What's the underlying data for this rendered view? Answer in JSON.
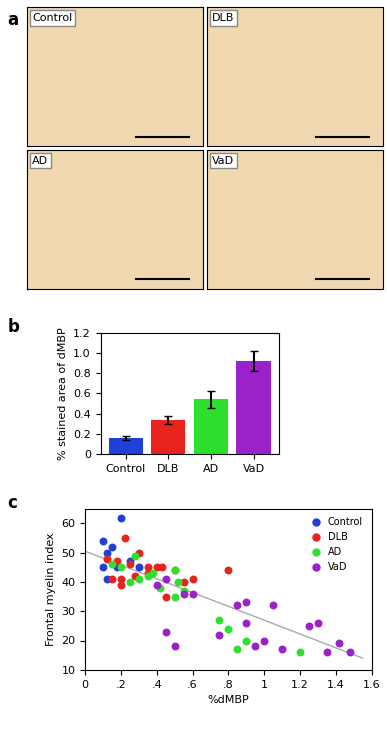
{
  "images": {
    "panel": "a",
    "labels": [
      "Control",
      "DLB",
      "AD",
      "VaD"
    ]
  },
  "chart_data": [
    {
      "type": "bar",
      "title": "b",
      "categories": [
        "Control",
        "DLB",
        "AD",
        "VaD"
      ],
      "values": [
        0.16,
        0.34,
        0.54,
        0.92
      ],
      "errors": [
        0.02,
        0.04,
        0.08,
        0.1
      ],
      "colors": [
        "#1f3fd6",
        "#e8221c",
        "#2ee02e",
        "#9a22c8"
      ],
      "y_label": "% stained area of dMBP",
      "ylim": [
        0,
        1.2
      ],
      "yticks": [
        0,
        0.2,
        0.4,
        0.6,
        0.8,
        1.0,
        1.2
      ]
    },
    {
      "type": "scatter",
      "title": "c",
      "x_label": "%dMBP",
      "y_label": "Frontal myelin index",
      "xlim": [
        0,
        1.6
      ],
      "xticks": [
        0,
        {
          "value": 0.2,
          "label": ".2"
        },
        {
          "value": 0.4,
          "label": ".4"
        },
        {
          "value": 0.6,
          "label": ".6"
        },
        {
          "value": 0.8,
          "label": ".8"
        },
        1,
        1.2,
        1.4,
        1.6
      ],
      "ylim": [
        10,
        65
      ],
      "yticks": [
        10,
        20,
        30,
        40,
        50,
        60
      ],
      "legend": "upper right",
      "series": [
        {
          "name": "Control",
          "color": "#1f3fd6",
          "x": [
            0.1,
            0.12,
            0.15,
            0.1,
            0.2,
            0.18,
            0.25,
            0.12,
            0.3
          ],
          "values": [
            54,
            50,
            52,
            45,
            62,
            45,
            47,
            41,
            45
          ]
        },
        {
          "name": "DLB",
          "color": "#e8221c",
          "x": [
            0.12,
            0.18,
            0.2,
            0.22,
            0.25,
            0.2,
            0.28,
            0.3,
            0.35,
            0.4,
            0.43,
            0.45,
            0.5,
            0.55,
            0.6,
            0.8,
            0.15,
            0.35
          ],
          "values": [
            48,
            47,
            41,
            55,
            46,
            39,
            42,
            50,
            45,
            45,
            45,
            35,
            44,
            40,
            41,
            44,
            41,
            43
          ]
        },
        {
          "name": "AD",
          "color": "#2ee02e",
          "x": [
            0.15,
            0.2,
            0.25,
            0.28,
            0.3,
            0.35,
            0.38,
            0.42,
            0.5,
            0.52,
            0.5,
            0.55,
            0.75,
            0.8,
            0.85,
            0.9,
            1.2
          ],
          "values": [
            46,
            45,
            40,
            49,
            41,
            42,
            43,
            38,
            44,
            40,
            35,
            37,
            27,
            24,
            17,
            20,
            16
          ]
        },
        {
          "name": "VaD",
          "color": "#9a22c8",
          "x": [
            0.4,
            0.45,
            0.45,
            0.5,
            0.6,
            0.75,
            0.85,
            0.9,
            0.9,
            0.95,
            1.0,
            1.05,
            1.1,
            1.25,
            1.3,
            1.35,
            1.42,
            1.48,
            0.55
          ],
          "values": [
            39,
            41,
            23,
            18,
            36,
            22,
            32,
            33,
            26,
            18,
            20,
            32,
            17,
            25,
            26,
            16,
            19,
            16,
            36
          ]
        },
        {
          "type": "line",
          "color": "#aaaaaa",
          "x": [
            0,
            1.55
          ],
          "values": [
            50.5,
            14
          ]
        }
      ]
    }
  ]
}
